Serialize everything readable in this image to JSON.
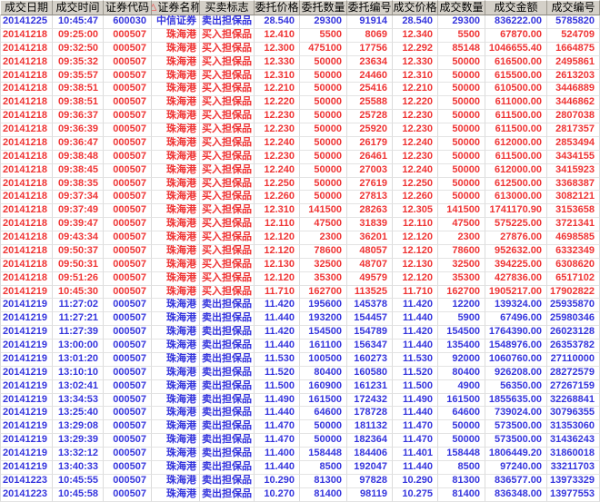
{
  "colors": {
    "buy_text": "#ef3434",
    "sell_text": "#3434dd",
    "header_bg": "#d4d0c8",
    "grid_line": "#dbdbdb"
  },
  "table": {
    "sort_icon": "△",
    "sort_column_index": 3,
    "columns": [
      {
        "key": "trade-date",
        "label": "成交日期"
      },
      {
        "key": "trade-time",
        "label": "成交时间"
      },
      {
        "key": "security-code",
        "label": "证券代码"
      },
      {
        "key": "security-name",
        "label": "证券名称"
      },
      {
        "key": "side-flag",
        "label": "买卖标志"
      },
      {
        "key": "order-price",
        "label": "委托价格"
      },
      {
        "key": "order-qty",
        "label": "委托数量"
      },
      {
        "key": "order-no",
        "label": "委托编号"
      },
      {
        "key": "trade-price",
        "label": "成交价格"
      },
      {
        "key": "trade-qty",
        "label": "成交数量"
      },
      {
        "key": "trade-amount",
        "label": "成交金额"
      },
      {
        "key": "trade-no",
        "label": "成交编号"
      }
    ],
    "rows": [
      {
        "side": "sell",
        "cells": [
          "20141225",
          "10:45:47",
          "600030",
          "中信证券",
          "卖出担保品",
          "28.540",
          "29300",
          "91914",
          "28.540",
          "29300",
          "836222.00",
          "5785820"
        ]
      },
      {
        "side": "buy",
        "cells": [
          "20141218",
          "09:25:00",
          "000507",
          "珠海港",
          "买入担保品",
          "12.410",
          "5500",
          "8069",
          "12.340",
          "5500",
          "67870.00",
          "524709"
        ]
      },
      {
        "side": "buy",
        "cells": [
          "20141218",
          "09:32:50",
          "000507",
          "珠海港",
          "买入担保品",
          "12.300",
          "475100",
          "17756",
          "12.292",
          "85148",
          "1046655.40",
          "1664875"
        ]
      },
      {
        "side": "buy",
        "cells": [
          "20141218",
          "09:35:32",
          "000507",
          "珠海港",
          "买入担保品",
          "12.330",
          "50000",
          "23634",
          "12.330",
          "50000",
          "616500.00",
          "2495861"
        ]
      },
      {
        "side": "buy",
        "cells": [
          "20141218",
          "09:35:57",
          "000507",
          "珠海港",
          "买入担保品",
          "12.310",
          "50000",
          "24460",
          "12.310",
          "50000",
          "615500.00",
          "2613203"
        ]
      },
      {
        "side": "buy",
        "cells": [
          "20141218",
          "09:38:51",
          "000507",
          "珠海港",
          "买入担保品",
          "12.210",
          "50000",
          "25416",
          "12.210",
          "50000",
          "610500.00",
          "3446889"
        ]
      },
      {
        "side": "buy",
        "cells": [
          "20141218",
          "09:38:51",
          "000507",
          "珠海港",
          "买入担保品",
          "12.220",
          "50000",
          "25588",
          "12.220",
          "50000",
          "611000.00",
          "3446862"
        ]
      },
      {
        "side": "buy",
        "cells": [
          "20141218",
          "09:36:37",
          "000507",
          "珠海港",
          "买入担保品",
          "12.230",
          "50000",
          "25728",
          "12.230",
          "50000",
          "611500.00",
          "2807038"
        ]
      },
      {
        "side": "buy",
        "cells": [
          "20141218",
          "09:36:39",
          "000507",
          "珠海港",
          "买入担保品",
          "12.230",
          "50000",
          "25920",
          "12.230",
          "50000",
          "611500.00",
          "2817357"
        ]
      },
      {
        "side": "buy",
        "cells": [
          "20141218",
          "09:36:47",
          "000507",
          "珠海港",
          "买入担保品",
          "12.240",
          "50000",
          "26179",
          "12.240",
          "50000",
          "612000.00",
          "2853494"
        ]
      },
      {
        "side": "buy",
        "cells": [
          "20141218",
          "09:38:48",
          "000507",
          "珠海港",
          "买入担保品",
          "12.230",
          "50000",
          "26461",
          "12.230",
          "50000",
          "611500.00",
          "3434155"
        ]
      },
      {
        "side": "buy",
        "cells": [
          "20141218",
          "09:38:45",
          "000507",
          "珠海港",
          "买入担保品",
          "12.240",
          "50000",
          "27003",
          "12.240",
          "50000",
          "612000.00",
          "3415923"
        ]
      },
      {
        "side": "buy",
        "cells": [
          "20141218",
          "09:38:35",
          "000507",
          "珠海港",
          "买入担保品",
          "12.250",
          "50000",
          "27619",
          "12.250",
          "50000",
          "612500.00",
          "3368387"
        ]
      },
      {
        "side": "buy",
        "cells": [
          "20141218",
          "09:37:34",
          "000507",
          "珠海港",
          "买入担保品",
          "12.260",
          "50000",
          "27813",
          "12.260",
          "50000",
          "613000.00",
          "3082121"
        ]
      },
      {
        "side": "buy",
        "cells": [
          "20141218",
          "09:37:49",
          "000507",
          "珠海港",
          "买入担保品",
          "12.310",
          "141500",
          "28263",
          "12.305",
          "141500",
          "1741170.90",
          "3153658"
        ]
      },
      {
        "side": "buy",
        "cells": [
          "20141218",
          "09:39:47",
          "000507",
          "珠海港",
          "买入担保品",
          "12.110",
          "47500",
          "31839",
          "12.110",
          "47500",
          "575225.00",
          "3721341"
        ]
      },
      {
        "side": "buy",
        "cells": [
          "20141218",
          "09:43:34",
          "000507",
          "珠海港",
          "买入担保品",
          "12.120",
          "2300",
          "36201",
          "12.120",
          "2300",
          "27876.00",
          "4698585"
        ]
      },
      {
        "side": "buy",
        "cells": [
          "20141218",
          "09:50:37",
          "000507",
          "珠海港",
          "买入担保品",
          "12.120",
          "78600",
          "48057",
          "12.120",
          "78600",
          "952632.00",
          "6332349"
        ]
      },
      {
        "side": "buy",
        "cells": [
          "20141218",
          "09:50:31",
          "000507",
          "珠海港",
          "买入担保品",
          "12.130",
          "32500",
          "48707",
          "12.130",
          "32500",
          "394225.00",
          "6308620"
        ]
      },
      {
        "side": "buy",
        "cells": [
          "20141218",
          "09:51:26",
          "000507",
          "珠海港",
          "买入担保品",
          "12.120",
          "35300",
          "49579",
          "12.120",
          "35300",
          "427836.00",
          "6517102"
        ]
      },
      {
        "side": "buy",
        "cells": [
          "20141219",
          "10:45:30",
          "000507",
          "珠海港",
          "买入担保品",
          "11.710",
          "162700",
          "113525",
          "11.710",
          "162700",
          "1905217.00",
          "17902822"
        ]
      },
      {
        "side": "sell",
        "cells": [
          "20141219",
          "11:27:02",
          "000507",
          "珠海港",
          "卖出担保品",
          "11.420",
          "195600",
          "145378",
          "11.420",
          "12200",
          "139324.00",
          "25935870"
        ]
      },
      {
        "side": "sell",
        "cells": [
          "20141219",
          "11:27:21",
          "000507",
          "珠海港",
          "卖出担保品",
          "11.440",
          "193200",
          "154457",
          "11.440",
          "5900",
          "67496.00",
          "25980346"
        ]
      },
      {
        "side": "sell",
        "cells": [
          "20141219",
          "11:27:39",
          "000507",
          "珠海港",
          "卖出担保品",
          "11.420",
          "154500",
          "154789",
          "11.420",
          "154500",
          "1764390.00",
          "26023128"
        ]
      },
      {
        "side": "sell",
        "cells": [
          "20141219",
          "13:00:00",
          "000507",
          "珠海港",
          "卖出担保品",
          "11.440",
          "161100",
          "156347",
          "11.440",
          "135400",
          "1548976.00",
          "26353782"
        ]
      },
      {
        "side": "sell",
        "cells": [
          "20141219",
          "13:01:20",
          "000507",
          "珠海港",
          "卖出担保品",
          "11.530",
          "100500",
          "160273",
          "11.530",
          "92000",
          "1060760.00",
          "27110000"
        ]
      },
      {
        "side": "sell",
        "cells": [
          "20141219",
          "13:10:10",
          "000507",
          "珠海港",
          "卖出担保品",
          "11.520",
          "80400",
          "160580",
          "11.520",
          "80400",
          "926208.00",
          "28272579"
        ]
      },
      {
        "side": "sell",
        "cells": [
          "20141219",
          "13:02:41",
          "000507",
          "珠海港",
          "卖出担保品",
          "11.500",
          "160900",
          "161231",
          "11.500",
          "4900",
          "56350.00",
          "27267159"
        ]
      },
      {
        "side": "sell",
        "cells": [
          "20141219",
          "13:34:53",
          "000507",
          "珠海港",
          "卖出担保品",
          "11.490",
          "161500",
          "172432",
          "11.490",
          "161500",
          "1855635.00",
          "32268841"
        ]
      },
      {
        "side": "sell",
        "cells": [
          "20141219",
          "13:25:40",
          "000507",
          "珠海港",
          "卖出担保品",
          "11.440",
          "64600",
          "178728",
          "11.440",
          "64600",
          "739024.00",
          "30796355"
        ]
      },
      {
        "side": "sell",
        "cells": [
          "20141219",
          "13:29:08",
          "000507",
          "珠海港",
          "卖出担保品",
          "11.470",
          "50000",
          "181132",
          "11.470",
          "50000",
          "573500.00",
          "31353060"
        ]
      },
      {
        "side": "sell",
        "cells": [
          "20141219",
          "13:29:39",
          "000507",
          "珠海港",
          "卖出担保品",
          "11.470",
          "50000",
          "182364",
          "11.470",
          "50000",
          "573500.00",
          "31436243"
        ]
      },
      {
        "side": "sell",
        "cells": [
          "20141219",
          "13:32:12",
          "000507",
          "珠海港",
          "卖出担保品",
          "11.400",
          "158448",
          "184406",
          "11.401",
          "158448",
          "1806449.20",
          "31860018"
        ]
      },
      {
        "side": "sell",
        "cells": [
          "20141219",
          "13:40:33",
          "000507",
          "珠海港",
          "卖出担保品",
          "11.440",
          "8500",
          "192047",
          "11.440",
          "8500",
          "97240.00",
          "33211703"
        ]
      },
      {
        "side": "sell",
        "cells": [
          "20141223",
          "10:45:55",
          "000507",
          "珠海港",
          "卖出担保品",
          "10.290",
          "81300",
          "97828",
          "10.290",
          "81300",
          "836577.00",
          "13973329"
        ]
      },
      {
        "side": "sell",
        "cells": [
          "20141223",
          "10:45:58",
          "000507",
          "珠海港",
          "卖出担保品",
          "10.270",
          "81400",
          "98119",
          "10.275",
          "81400",
          "836348.00",
          "13977553"
        ]
      }
    ]
  }
}
